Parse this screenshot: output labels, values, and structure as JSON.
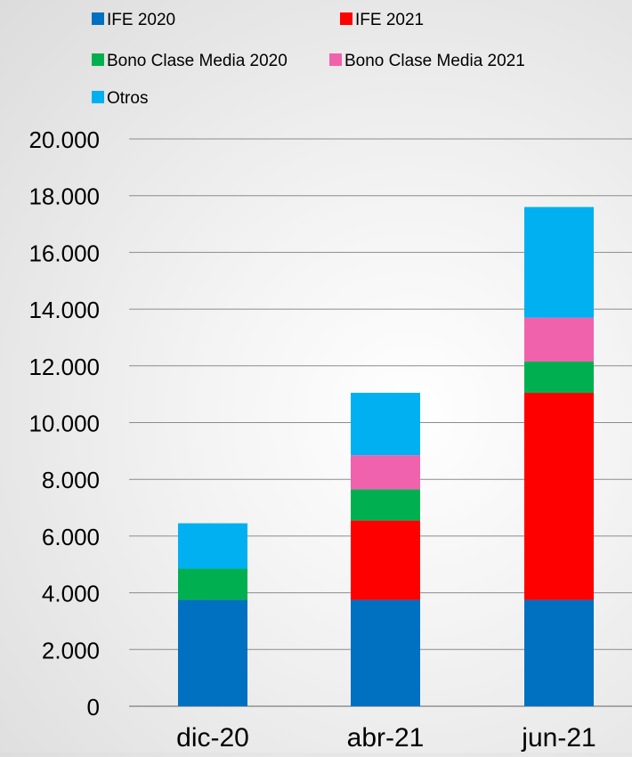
{
  "chart_data": {
    "type": "bar",
    "stacked": true,
    "title": "",
    "xlabel": "",
    "ylabel": "",
    "categories": [
      "dic-20",
      "abr-21",
      "jun-21"
    ],
    "series": [
      {
        "name": "IFE 2020",
        "color": "#0070C0",
        "values": [
          3750,
          3750,
          3750
        ]
      },
      {
        "name": "IFE 2021",
        "color": "#FF0000",
        "values": [
          0,
          2800,
          7300
        ]
      },
      {
        "name": "Bono Clase Media 2020",
        "color": "#00B050",
        "values": [
          1100,
          1100,
          1100
        ]
      },
      {
        "name": "Bono Clase Media 2021",
        "color": "#F062AC",
        "values": [
          0,
          1200,
          1550
        ]
      },
      {
        "name": "Otros",
        "color": "#00B0F0",
        "values": [
          1600,
          2200,
          3900
        ]
      }
    ],
    "ylim": [
      0,
      20000
    ],
    "yticks": [
      0,
      2000,
      4000,
      6000,
      8000,
      10000,
      12000,
      14000,
      16000,
      18000,
      20000
    ],
    "ytick_labels": [
      "0",
      "2.000",
      "4.000",
      "6.000",
      "8.000",
      "10.000",
      "12.000",
      "14.000",
      "16.000",
      "18.000",
      "20.000"
    ],
    "grid": true,
    "legend_position": "top"
  }
}
